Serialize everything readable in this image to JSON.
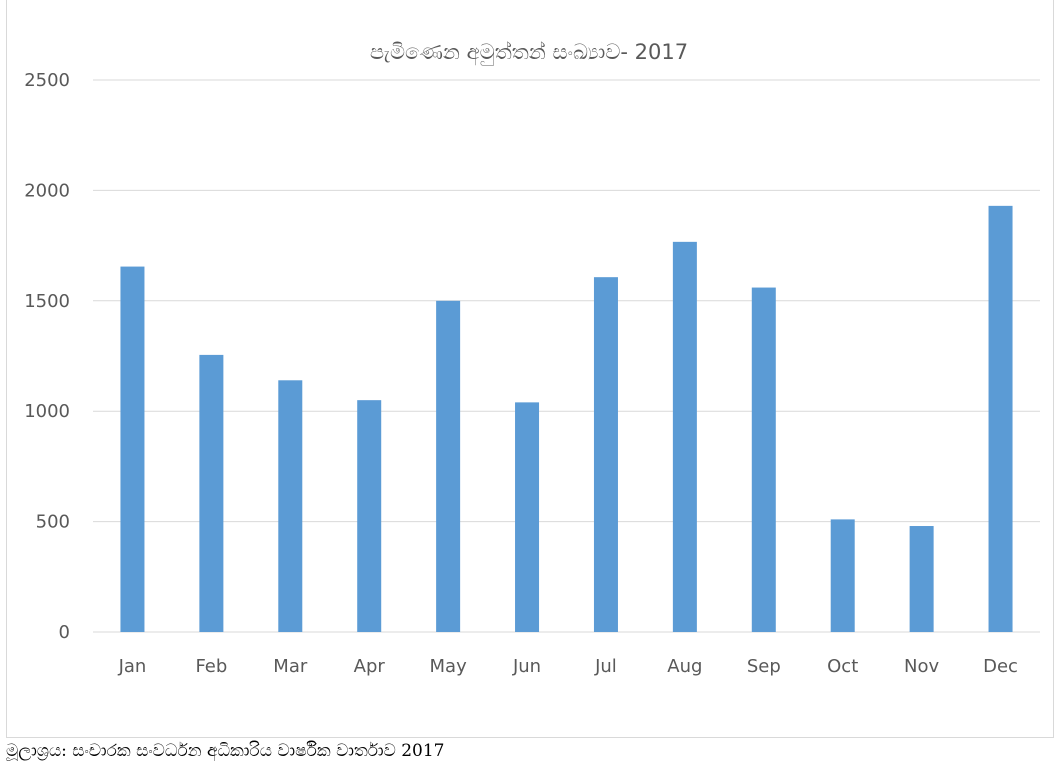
{
  "chart_data": {
    "type": "bar",
    "title": "පැමිණෙන අමුත්තන් සංඛ්‍යාව- 2017",
    "categories": [
      "Jan",
      "Feb",
      "Mar",
      "Apr",
      "May",
      "Jun",
      "Jul",
      "Aug",
      "Sep",
      "Oct",
      "Nov",
      "Dec"
    ],
    "values": [
      1655,
      1255,
      1140,
      1050,
      1500,
      1040,
      1607,
      1767,
      1560,
      510,
      480,
      1930
    ],
    "ylim": [
      0,
      2500
    ],
    "yticks": [
      "0",
      "500",
      "1000",
      "1500",
      "2000",
      "2500"
    ],
    "xlabel": "",
    "ylabel": "",
    "grid": true,
    "legend": "none",
    "bar_color": "#5b9bd5",
    "grid_color": "#d9d9d9"
  },
  "caption": "මූලාශ්‍රය: සංචාරක සංවර්ධන අධිකාරිය වාර්ෂික වාර්තාව 2017"
}
